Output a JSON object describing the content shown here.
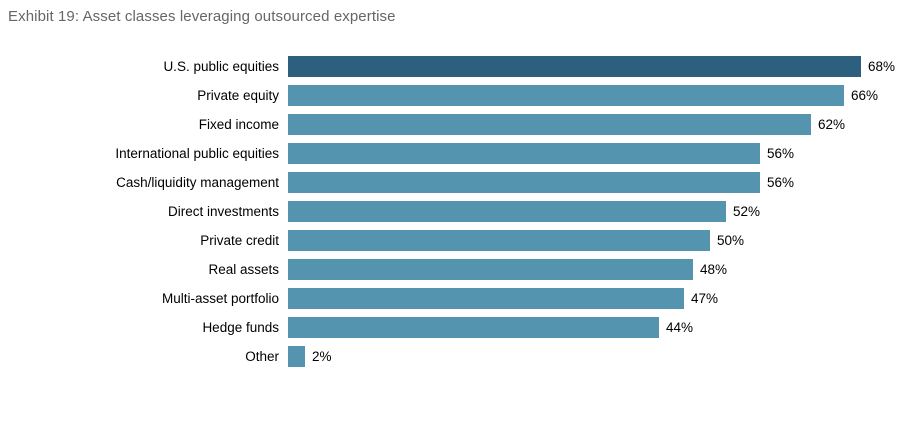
{
  "title": "Exhibit 19: Asset classes leveraging outsourced expertise",
  "colors": {
    "highlight_bar": "#2d5f7e",
    "regular_bar": "#5594ae",
    "title_text": "#63666a",
    "label_text": "#000000"
  },
  "chart_data": {
    "type": "bar",
    "orientation": "horizontal",
    "title": "Exhibit 19: Asset classes leveraging outsourced expertise",
    "xlabel": "",
    "ylabel": "",
    "xlim": [
      0,
      70
    ],
    "grid": false,
    "legend": false,
    "value_suffix": "%",
    "highlight_index": 0,
    "categories": [
      "U.S. public equities",
      "Private equity",
      "Fixed income",
      "International public equities",
      "Cash/liquidity management",
      "Direct investments",
      "Private credit",
      "Real assets",
      "Multi-asset portfolio",
      "Hedge funds",
      "Other"
    ],
    "values": [
      68,
      66,
      62,
      56,
      56,
      52,
      50,
      48,
      47,
      44,
      2
    ]
  }
}
